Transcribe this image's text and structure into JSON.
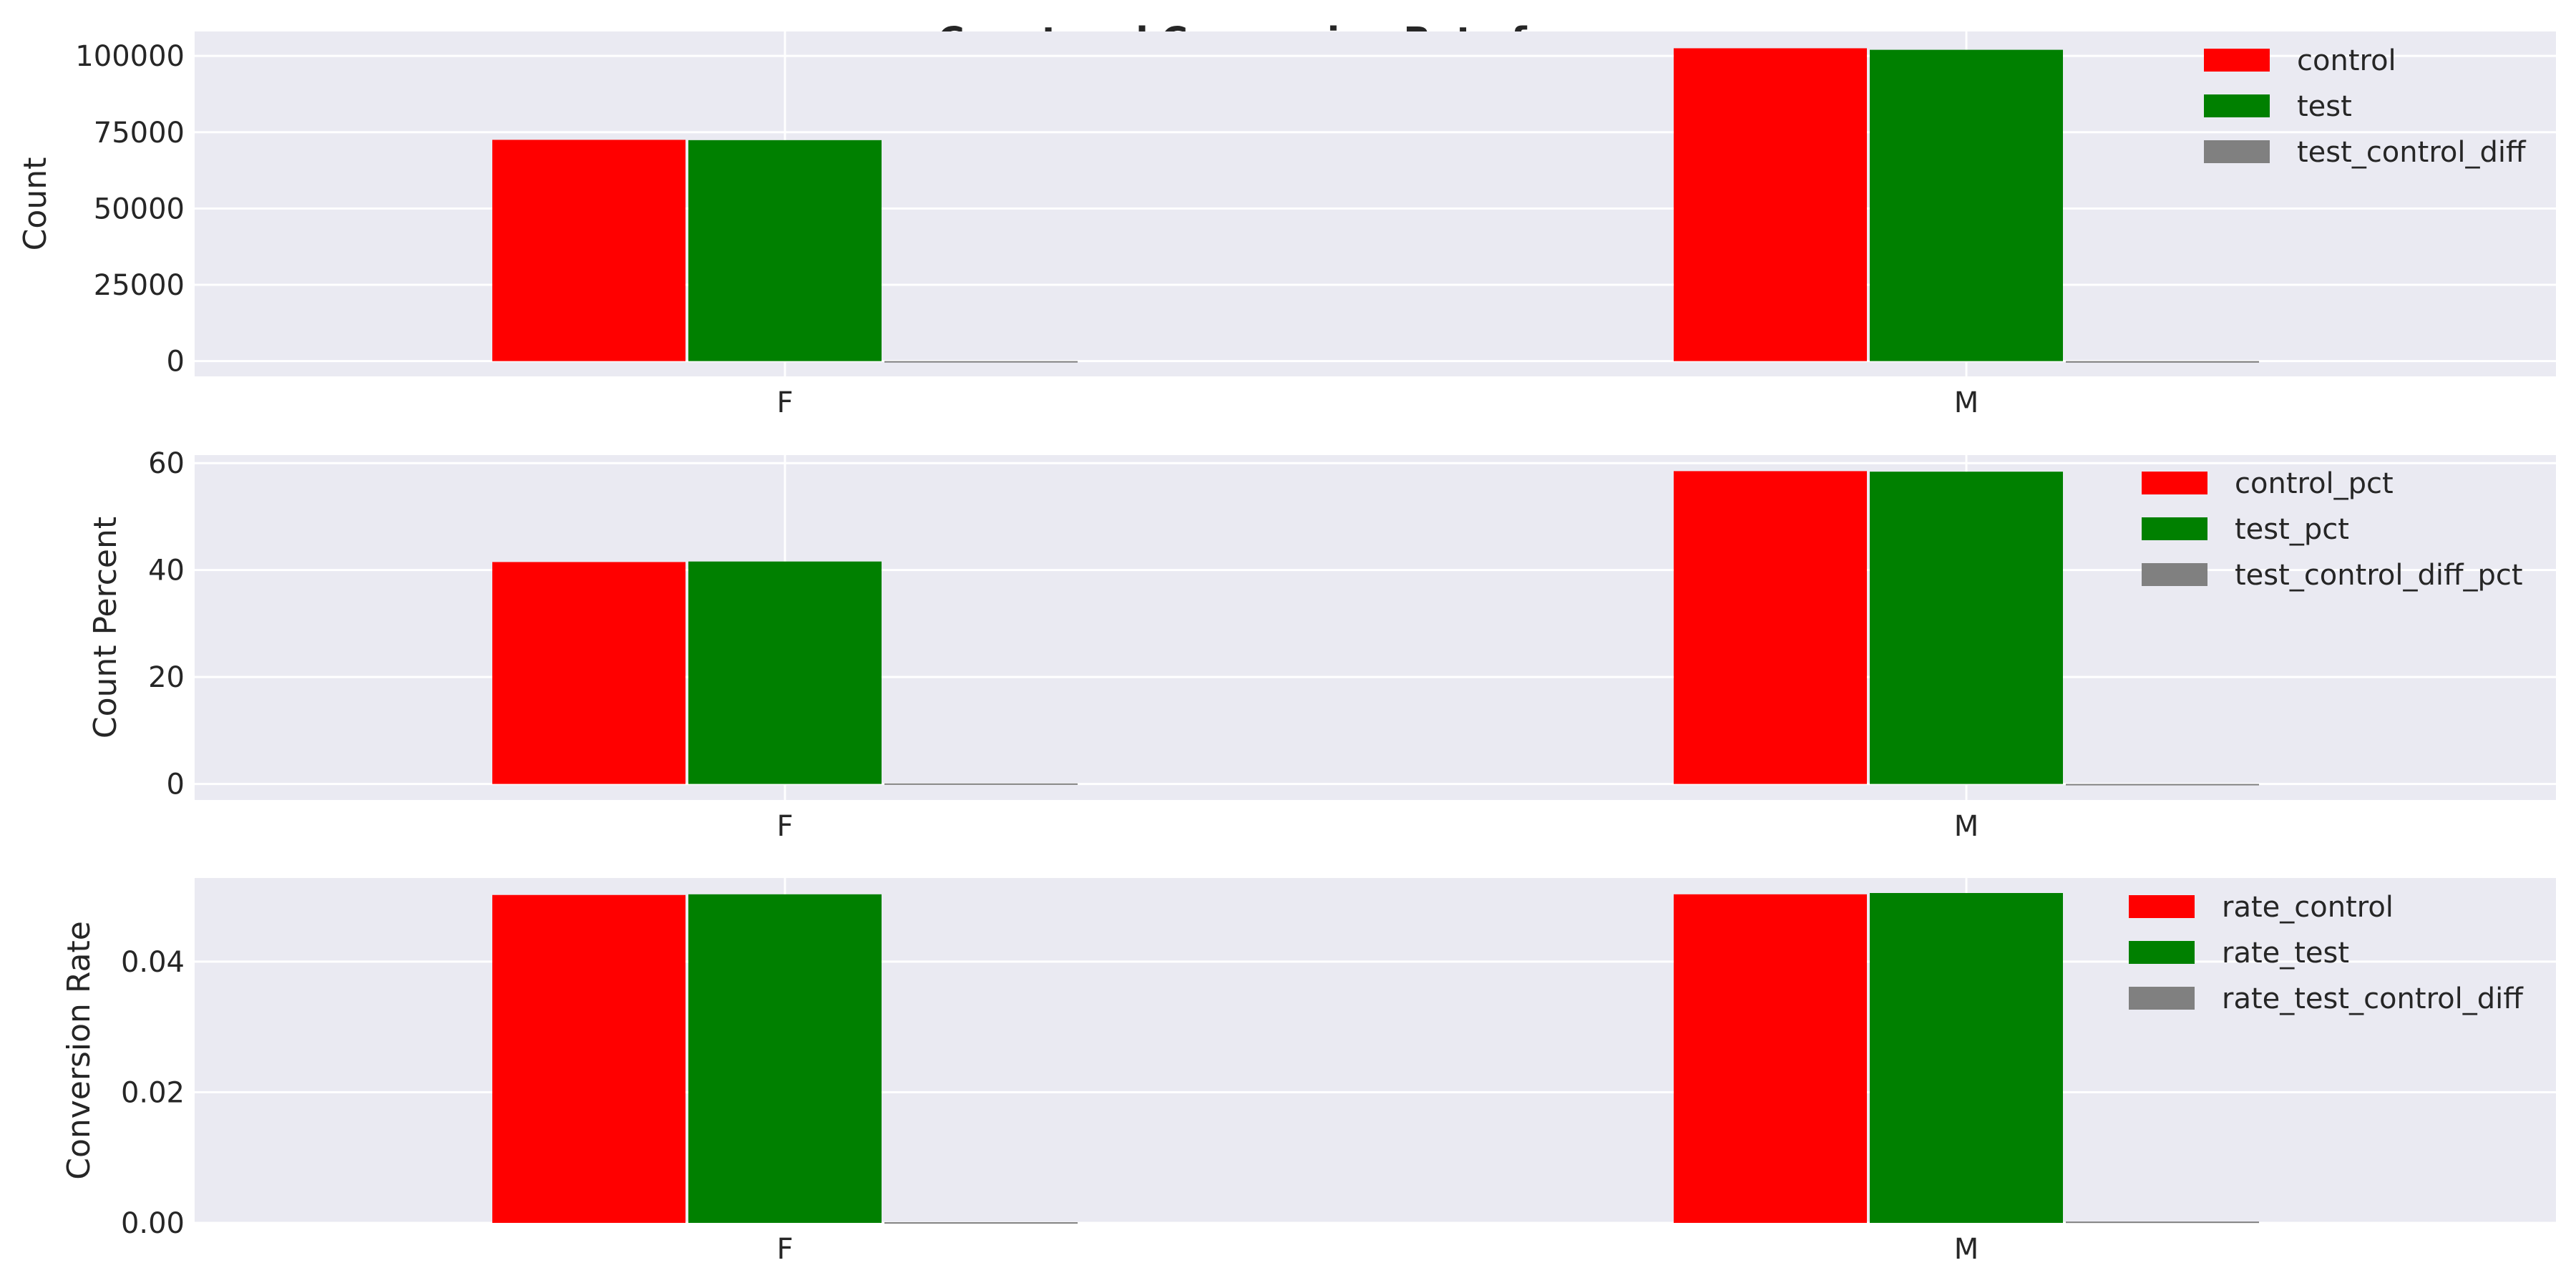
{
  "title": "Count and Conversion Rate for sex",
  "colors": {
    "plot_bg": "#eaeaf2",
    "grid": "#ffffff",
    "control": "#ff0000",
    "test": "#008000",
    "diff": "#808080"
  },
  "chart_data": [
    {
      "type": "bar",
      "title": "Count and Conversion Rate for sex",
      "categories": [
        "F",
        "M"
      ],
      "ylabel": "Count",
      "ylim": [
        -5000,
        108000
      ],
      "yticks": [
        0,
        25000,
        50000,
        75000,
        100000
      ],
      "ytick_labels": [
        "0",
        "25000",
        "50000",
        "75000",
        "100000"
      ],
      "grid": true,
      "legend_position": "top-right",
      "series": [
        {
          "name": "control",
          "color": "#ff0000",
          "values": [
            72500,
            102500
          ]
        },
        {
          "name": "test",
          "color": "#008000",
          "values": [
            72400,
            102000
          ]
        },
        {
          "name": "test_control_diff",
          "color": "#808080",
          "values": [
            -100,
            -500
          ]
        }
      ]
    },
    {
      "type": "bar",
      "categories": [
        "F",
        "M"
      ],
      "ylabel": "Count Percent",
      "ylim": [
        -3,
        61.5
      ],
      "yticks": [
        0,
        20,
        40,
        60
      ],
      "ytick_labels": [
        "0",
        "20",
        "40",
        "60"
      ],
      "grid": true,
      "legend_position": "top-right",
      "series": [
        {
          "name": "control_pct",
          "color": "#ff0000",
          "values": [
            41.5,
            58.5
          ]
        },
        {
          "name": "test_pct",
          "color": "#008000",
          "values": [
            41.6,
            58.4
          ]
        },
        {
          "name": "test_control_diff_pct",
          "color": "#808080",
          "values": [
            0.1,
            -0.1
          ]
        }
      ]
    },
    {
      "type": "bar",
      "categories": [
        "F",
        "M"
      ],
      "ylabel": "Conversion Rate",
      "ylim": [
        0,
        0.0528
      ],
      "yticks": [
        0,
        0.02,
        0.04
      ],
      "ytick_labels": [
        "0.00",
        "0.02",
        "0.04"
      ],
      "grid": true,
      "legend_position": "top-right",
      "series": [
        {
          "name": "rate_control",
          "color": "#ff0000",
          "values": [
            0.0502,
            0.0503
          ]
        },
        {
          "name": "rate_test",
          "color": "#008000",
          "values": [
            0.0503,
            0.0505
          ]
        },
        {
          "name": "rate_test_control_diff",
          "color": "#808080",
          "values": [
            0.0001,
            0.0002
          ]
        }
      ]
    }
  ]
}
